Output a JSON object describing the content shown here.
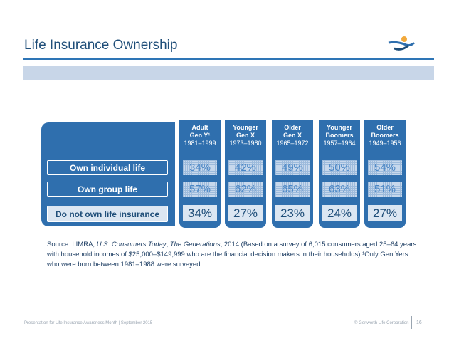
{
  "slide": {
    "title": "Life Insurance Ownership"
  },
  "rows": [
    {
      "label": "Own individual life"
    },
    {
      "label": "Own group life"
    },
    {
      "label": "Do not own life insurance"
    }
  ],
  "columns": [
    {
      "line1": "Adult",
      "line2": "Gen Y¹",
      "years": "1981–1999",
      "values": [
        "34%",
        "57%",
        "34%"
      ]
    },
    {
      "line1": "Younger",
      "line2": "Gen X",
      "years": "1973–1980",
      "values": [
        "42%",
        "62%",
        "27%"
      ]
    },
    {
      "line1": "Older",
      "line2": "Gen X",
      "years": "1965–1972",
      "values": [
        "49%",
        "65%",
        "23%"
      ]
    },
    {
      "line1": "Younger",
      "line2": "Boomers",
      "years": "1957–1964",
      "values": [
        "50%",
        "63%",
        "24%"
      ]
    },
    {
      "line1": "Older",
      "line2": "Boomers",
      "years": "1949–1956",
      "values": [
        "54%",
        "51%",
        "27%"
      ]
    }
  ],
  "source": {
    "prefix": "Source:  LIMRA, ",
    "pub1": "U.S. Consumers Today",
    "sep": ", ",
    "pub2": "The Generations",
    "rest": ", 2014 (Based on a survey of 6,015 consumers aged 25–64 years with household incomes of $25,000–$149,999 who are the financial decision makers in their households) ¹Only Gen Yers who were born between 1981–1988 were surveyed"
  },
  "footer": {
    "left": "Presentation for Life Insurance Awareness Month | September 2015",
    "right": "© Genworth Life Corporation",
    "page": "16"
  },
  "colors": {
    "brand_blue": "#2f6fae",
    "title_blue": "#1f4e79",
    "logo_orange": "#f2a93b"
  },
  "icons": {
    "logo": "genworth-logo-icon"
  }
}
